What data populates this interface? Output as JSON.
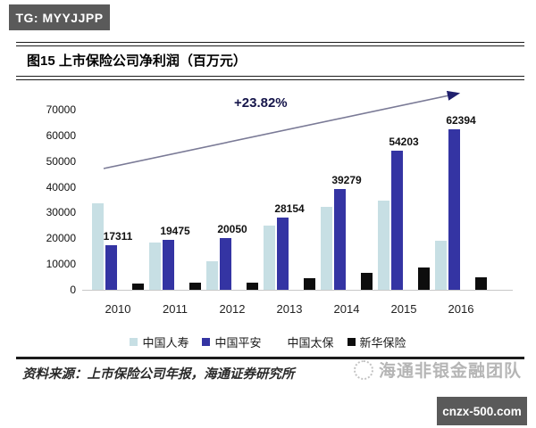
{
  "badge": {
    "text": "TG: MYYJJPP"
  },
  "figure": {
    "title": "图15 上市保险公司净利润（百万元）"
  },
  "chart_data": {
    "type": "bar",
    "title": "上市保险公司净利润（百万元）",
    "categories": [
      "2010",
      "2011",
      "2012",
      "2013",
      "2014",
      "2015",
      "2016"
    ],
    "series": [
      {
        "name": "中国人寿",
        "color": "#c7dfe4",
        "show_labels": false,
        "values": [
          33600,
          18300,
          11100,
          24800,
          32200,
          34700,
          19100
        ]
      },
      {
        "name": "中国平安",
        "color": "#3434a3",
        "show_labels": true,
        "values": [
          17311,
          19475,
          20050,
          28154,
          39279,
          54203,
          62394
        ]
      },
      {
        "name": "中国太保",
        "color": "#ffffff",
        "show_labels": false,
        "values": [
          null,
          null,
          null,
          null,
          null,
          null,
          null
        ],
        "note": "bars rendered white / not visible in image"
      },
      {
        "name": "新华保险",
        "color": "#0d0d0d",
        "show_labels": false,
        "values": [
          2400,
          2800,
          2900,
          4500,
          6600,
          8700,
          4900
        ]
      }
    ],
    "ylim": [
      0,
      70000
    ],
    "ytick_step": 10000,
    "grid": false,
    "legend_position": "bottom",
    "annotation": {
      "text": "+23.82%"
    }
  },
  "source": {
    "text": "资料来源：上市保险公司年报，海通证券研究所"
  },
  "watermark": {
    "text": "海通非银金融团队"
  },
  "footer_badge": {
    "text": "cnzx-500.com"
  }
}
